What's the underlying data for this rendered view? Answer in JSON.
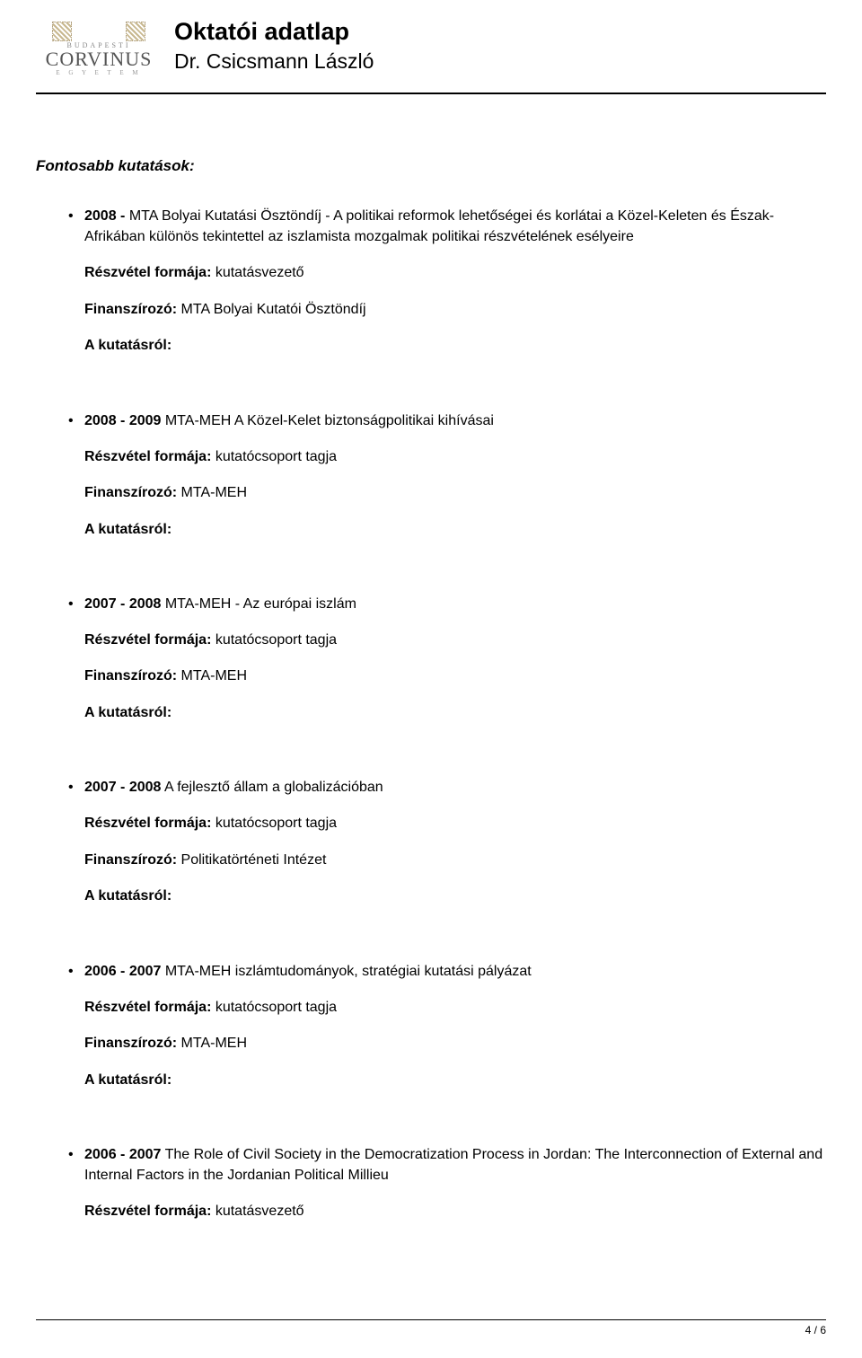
{
  "header": {
    "logo": {
      "arc_text": "BUDAPESTI",
      "main": "CORVINUS",
      "sub": "E G Y E T E M"
    },
    "title": "Oktatói adatlap",
    "subtitle": "Dr. Csicsmann László"
  },
  "section_title": "Fontosabb kutatások:",
  "about_label": "A kutatásról:",
  "participation_label": "Részvétel formája:",
  "funder_label": "Finanszírozó:",
  "items": [
    {
      "year": "2008 -",
      "title": "  MTA Bolyai Kutatási Ösztöndíj - A politikai reformok lehetőségei és korlátai a Közel-Keleten és Észak-Afrikában különös tekintettel az iszlamista mozgalmak politikai részvételének esélyeire",
      "participation": " kutatásvezető",
      "funder": " MTA Bolyai Kutatói Ösztöndíj"
    },
    {
      "year": "2008 - 2009",
      "title": " MTA-MEH A Közel-Kelet biztonságpolitikai kihívásai",
      "participation": " kutatócsoport tagja",
      "funder": " MTA-MEH"
    },
    {
      "year": "2007 - 2008",
      "title": " MTA-MEH - Az európai iszlám",
      "participation": " kutatócsoport tagja",
      "funder": " MTA-MEH"
    },
    {
      "year": "2007 - 2008",
      "title": " A fejlesztő állam a globalizációban",
      "participation": " kutatócsoport tagja",
      "funder": " Politikatörténeti Intézet"
    },
    {
      "year": "2006 - 2007",
      "title": " MTA-MEH iszlámtudományok, stratégiai kutatási pályázat",
      "participation": " kutatócsoport tagja",
      "funder": " MTA-MEH"
    },
    {
      "year": "2006 - 2007",
      "title": " The Role of Civil Society in the Democratization Process in Jordan: The Interconnection of External and Internal Factors in the Jordanian Political Millieu",
      "participation": " kutatásvezető",
      "funder": null
    }
  ],
  "page": "4 / 6"
}
